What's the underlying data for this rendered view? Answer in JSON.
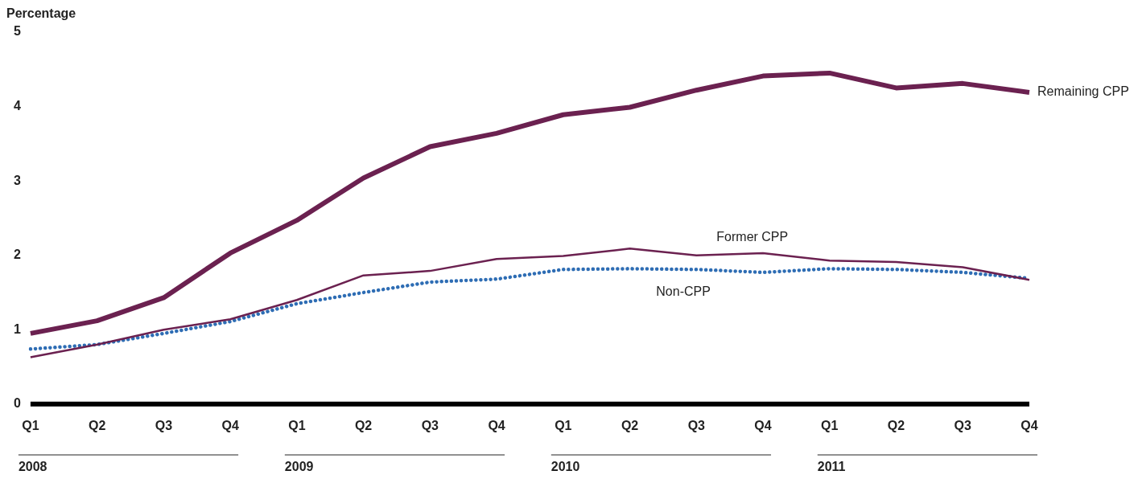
{
  "chart_data": {
    "type": "line",
    "ylabel": "Percentage",
    "categories": [
      "Q1",
      "Q2",
      "Q3",
      "Q4",
      "Q1",
      "Q2",
      "Q3",
      "Q4",
      "Q1",
      "Q2",
      "Q3",
      "Q4",
      "Q1",
      "Q2",
      "Q3",
      "Q4"
    ],
    "series": [
      {
        "name": "Remaining CPP",
        "color": "#6b2150",
        "values": [
          0.95,
          1.12,
          1.43,
          2.03,
          2.47,
          3.04,
          3.46,
          3.64,
          3.89,
          3.99,
          4.22,
          4.41,
          4.45,
          4.25,
          4.31,
          4.19
        ]
      },
      {
        "name": "Former CPP",
        "color": "#6b2150",
        "values": [
          0.63,
          0.8,
          1.0,
          1.14,
          1.4,
          1.73,
          1.79,
          1.95,
          1.99,
          2.09,
          2.0,
          2.03,
          1.93,
          1.91,
          1.84,
          1.67
        ]
      },
      {
        "name": "Non-CPP",
        "color": "#2e6db4",
        "line_style": "dotted",
        "values": [
          0.74,
          0.8,
          0.95,
          1.11,
          1.35,
          1.5,
          1.64,
          1.68,
          1.81,
          1.82,
          1.81,
          1.77,
          1.82,
          1.81,
          1.77,
          1.69
        ]
      }
    ],
    "ylim": [
      0,
      5
    ],
    "yticks": [
      0,
      1,
      2,
      3,
      4,
      5
    ],
    "grid": false,
    "legend": false,
    "marker": "none",
    "annotations": [
      "2008",
      "2009",
      "2010",
      "2011"
    ]
  }
}
